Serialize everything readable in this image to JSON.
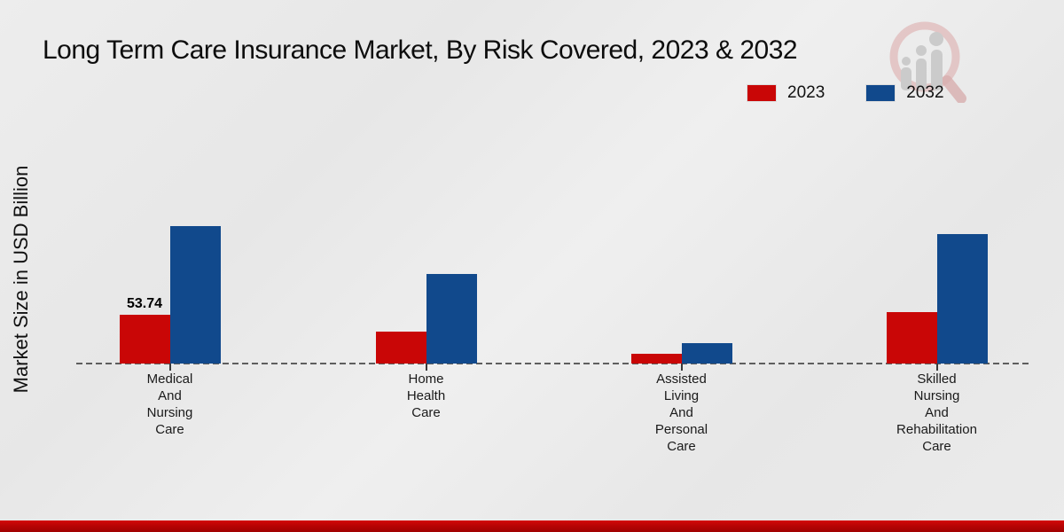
{
  "title": "Long Term Care Insurance Market, By Risk Covered, 2023 & 2032",
  "chart_data": {
    "type": "bar",
    "title": "Long Term Care Insurance Market, By Risk Covered, 2023 & 2032",
    "ylabel": "Market Size in USD Billion",
    "xlabel": "",
    "categories": [
      "Medical\nAnd\nNursing\nCare",
      "Home\nHealth\nCare",
      "Assisted\nLiving\nAnd\nPersonal\nCare",
      "Skilled\nNursing\nAnd\nRehabilitation\nCare"
    ],
    "series": [
      {
        "name": "2023",
        "color": "#c90606",
        "values": [
          53.74,
          35.2,
          10.7,
          56.7
        ]
      },
      {
        "name": "2032",
        "color": "#11498c",
        "values": [
          151.5,
          98.7,
          22.5,
          142.7
        ]
      }
    ],
    "data_label": "53.74",
    "ylim": [
      0,
      160
    ],
    "grid": false,
    "legend_position": "top-right",
    "baseline_style": "dashed"
  },
  "watermark_icon": "magnifier-bar-chart-logo",
  "colors": {
    "series_2023": "#c90606",
    "series_2032": "#11498c",
    "background": "#e9e9e9",
    "baseline": "#5e5e5e",
    "footer_strip": "#b30303",
    "watermark_pink": "#ddb2b2",
    "watermark_gray": "#c6c6c6"
  }
}
